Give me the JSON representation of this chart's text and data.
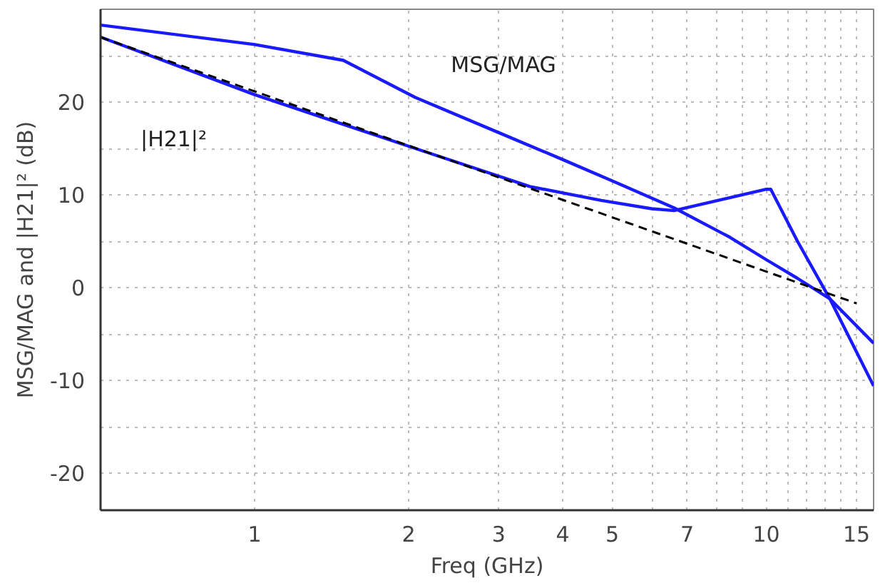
{
  "chart_data": {
    "type": "line",
    "xlabel": "Freq (GHz)",
    "ylabel": "MSG/MAG and |H21|² (dB)",
    "log": "x",
    "grid": true,
    "line_style": "solid",
    "marker": "none",
    "xlim": [
      0.5,
      16.2
    ],
    "ylim": [
      -24,
      30
    ],
    "xticks": [
      1,
      2,
      3,
      4,
      5,
      {
        "value": 6,
        "label": null
      },
      7,
      {
        "value": 8,
        "label": null
      },
      {
        "value": 9,
        "label": null
      },
      10,
      {
        "value": 11,
        "label": null
      },
      {
        "value": 12,
        "label": null
      },
      {
        "value": 13,
        "label": null
      },
      {
        "value": 14,
        "label": null
      },
      15
    ],
    "yticks": [
      -20,
      {
        "value": -15,
        "label": null
      },
      -10,
      {
        "value": -5,
        "label": null
      },
      0,
      {
        "value": 5,
        "label": null
      },
      10,
      {
        "value": 15,
        "label": null
      },
      20,
      {
        "value": 25,
        "label": null
      }
    ],
    "series": [
      {
        "name": "MSG/MAG",
        "color": "#1a1aff",
        "x": [
          0.5,
          1,
          1.49,
          2.06,
          3,
          4,
          5,
          6.6,
          8.5,
          10,
          11.5,
          13.3,
          16.2
        ],
        "values": [
          28.3,
          26.2,
          24.5,
          20.5,
          16.7,
          13.8,
          11.5,
          8.6,
          5.4,
          3.0,
          1.0,
          -1.2,
          -6.0
        ]
      },
      {
        "name": "|H21|²",
        "color": "#1a1aff",
        "x": [
          0.5,
          1,
          2.06,
          3.45,
          4.76,
          5.97,
          6.6,
          8.5,
          10,
          10.2,
          11.5,
          13.3,
          16.2
        ],
        "values": [
          27.0,
          20.8,
          15.0,
          10.9,
          9.4,
          8.5,
          8.3,
          9.7,
          10.6,
          10.6,
          5.0,
          -1.2,
          -10.6
        ]
      },
      {
        "color": "#000000",
        "line_style": "dashed",
        "x": [
          0.5,
          15
        ],
        "values": [
          27.0,
          -1.7
        ]
      }
    ]
  }
}
